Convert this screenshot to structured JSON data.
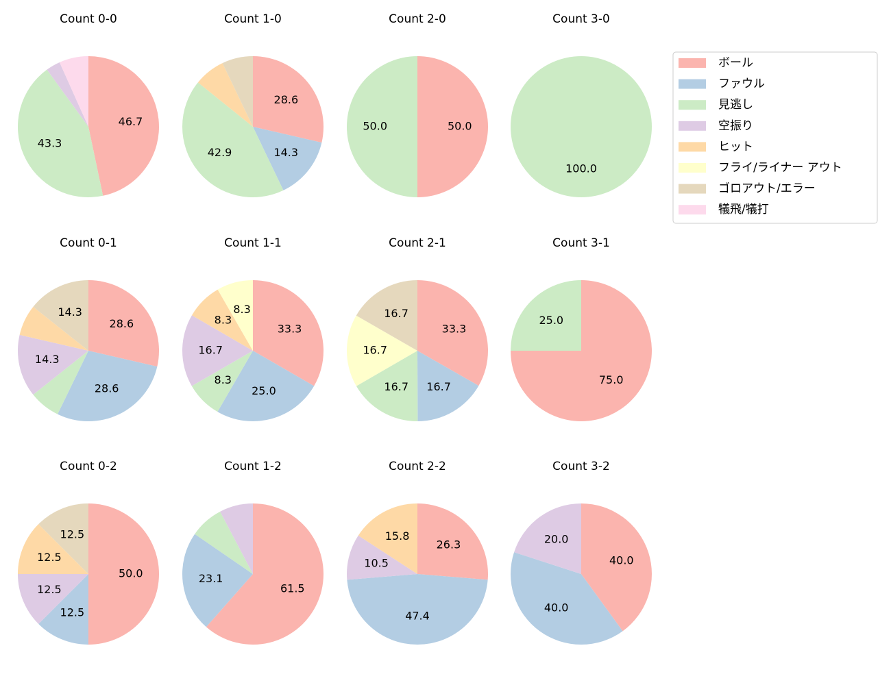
{
  "chart_data": [
    {
      "type": "pie",
      "title": "Count 0-0",
      "categories": [
        "ボール",
        "見逃し",
        "空振り",
        "犠飛/犠打"
      ],
      "values": [
        46.7,
        43.3,
        3.3,
        6.7
      ],
      "value_labels": [
        "46.7",
        "43.3",
        null,
        null
      ],
      "colors": [
        "#fbb4ae",
        "#ccebc5",
        "#decbe4",
        "#fddaec"
      ]
    },
    {
      "type": "pie",
      "title": "Count 1-0",
      "categories": [
        "ボール",
        "ファウル",
        "見逃し",
        "ヒット",
        "ゴロアウト/エラー"
      ],
      "values": [
        28.6,
        14.3,
        42.9,
        7.1,
        7.1
      ],
      "value_labels": [
        "28.6",
        "14.3",
        "42.9",
        null,
        null
      ],
      "colors": [
        "#fbb4ae",
        "#b3cde3",
        "#ccebc5",
        "#fed9a6",
        "#e5d8bd"
      ]
    },
    {
      "type": "pie",
      "title": "Count 2-0",
      "categories": [
        "ボール",
        "見逃し"
      ],
      "values": [
        50,
        50
      ],
      "value_labels": [
        "50.0",
        "50.0"
      ],
      "colors": [
        "#fbb4ae",
        "#ccebc5"
      ]
    },
    {
      "type": "pie",
      "title": "Count 3-0",
      "categories": [
        "見逃し"
      ],
      "values": [
        100
      ],
      "value_labels": [
        "100.0"
      ],
      "colors": [
        "#ccebc5"
      ]
    },
    {
      "type": "pie",
      "title": "Count 0-1",
      "categories": [
        "ボール",
        "ファウル",
        "見逃し",
        "空振り",
        "ヒット",
        "ゴロアウト/エラー"
      ],
      "values": [
        28.6,
        28.6,
        7.1,
        14.3,
        7.1,
        14.3
      ],
      "value_labels": [
        "28.6",
        "28.6",
        null,
        "14.3",
        null,
        "14.3"
      ],
      "colors": [
        "#fbb4ae",
        "#b3cde3",
        "#ccebc5",
        "#decbe4",
        "#fed9a6",
        "#e5d8bd"
      ]
    },
    {
      "type": "pie",
      "title": "Count 1-1",
      "categories": [
        "ボール",
        "ファウル",
        "見逃し",
        "空振り",
        "ヒット",
        "フライ/ライナー アウト"
      ],
      "values": [
        33.3,
        25,
        8.3,
        16.7,
        8.3,
        8.3
      ],
      "value_labels": [
        "33.3",
        "25.0",
        "8.3",
        "16.7",
        "8.3",
        "8.3"
      ],
      "colors": [
        "#fbb4ae",
        "#b3cde3",
        "#ccebc5",
        "#decbe4",
        "#fed9a6",
        "#ffffcc"
      ]
    },
    {
      "type": "pie",
      "title": "Count 2-1",
      "categories": [
        "ボール",
        "ファウル",
        "見逃し",
        "フライ/ライナー アウト",
        "ゴロアウト/エラー"
      ],
      "values": [
        33.3,
        16.7,
        16.7,
        16.7,
        16.7
      ],
      "value_labels": [
        "33.3",
        "16.7",
        "16.7",
        "16.7",
        "16.7"
      ],
      "colors": [
        "#fbb4ae",
        "#b3cde3",
        "#ccebc5",
        "#ffffcc",
        "#e5d8bd"
      ]
    },
    {
      "type": "pie",
      "title": "Count 3-1",
      "categories": [
        "ボール",
        "見逃し"
      ],
      "values": [
        75,
        25
      ],
      "value_labels": [
        "75.0",
        "25.0"
      ],
      "colors": [
        "#fbb4ae",
        "#ccebc5"
      ]
    },
    {
      "type": "pie",
      "title": "Count 0-2",
      "categories": [
        "ボール",
        "ファウル",
        "空振り",
        "ヒット",
        "ゴロアウト/エラー"
      ],
      "values": [
        50,
        12.5,
        12.5,
        12.5,
        12.5
      ],
      "value_labels": [
        "50.0",
        "12.5",
        "12.5",
        "12.5",
        "12.5"
      ],
      "colors": [
        "#fbb4ae",
        "#b3cde3",
        "#decbe4",
        "#fed9a6",
        "#e5d8bd"
      ]
    },
    {
      "type": "pie",
      "title": "Count 1-2",
      "categories": [
        "ボール",
        "ファウル",
        "見逃し",
        "空振り"
      ],
      "values": [
        61.5,
        23.1,
        7.7,
        7.7
      ],
      "value_labels": [
        "61.5",
        "23.1",
        null,
        null
      ],
      "colors": [
        "#fbb4ae",
        "#b3cde3",
        "#ccebc5",
        "#decbe4"
      ]
    },
    {
      "type": "pie",
      "title": "Count 2-2",
      "categories": [
        "ボール",
        "ファウル",
        "空振り",
        "ヒット"
      ],
      "values": [
        26.3,
        47.4,
        10.5,
        15.8
      ],
      "value_labels": [
        "26.3",
        "47.4",
        "10.5",
        "15.8"
      ],
      "colors": [
        "#fbb4ae",
        "#b3cde3",
        "#decbe4",
        "#fed9a6"
      ]
    },
    {
      "type": "pie",
      "title": "Count 3-2",
      "categories": [
        "ボール",
        "ファウル",
        "空振り"
      ],
      "values": [
        40,
        40,
        20
      ],
      "value_labels": [
        "40.0",
        "40.0",
        "20.0"
      ],
      "colors": [
        "#fbb4ae",
        "#b3cde3",
        "#decbe4"
      ]
    }
  ],
  "legend": {
    "entries": [
      {
        "name": "ボール",
        "color": "#fbb4ae"
      },
      {
        "name": "ファウル",
        "color": "#b3cde3"
      },
      {
        "name": "見逃し",
        "color": "#ccebc5"
      },
      {
        "name": "空振り",
        "color": "#decbe4"
      },
      {
        "name": "ヒット",
        "color": "#fed9a6"
      },
      {
        "name": "フライ/ライナー アウト",
        "color": "#ffffcc"
      },
      {
        "name": "ゴロアウト/エラー",
        "color": "#e5d8bd"
      },
      {
        "name": "犠飛/犠打",
        "color": "#fddaec"
      }
    ]
  }
}
